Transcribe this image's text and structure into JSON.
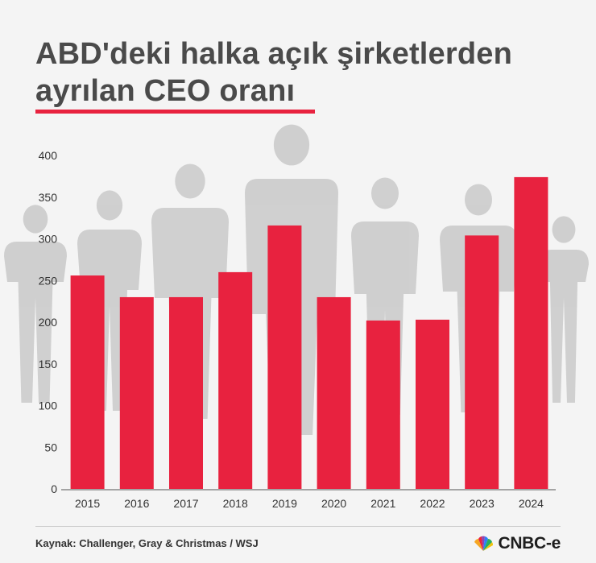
{
  "title": {
    "line1": "ABD'deki halka açık şirketlerden",
    "line2": "ayrılan CEO oranı"
  },
  "source": "Kaynak: Challenger, Gray & Christmas / WSJ",
  "logo": {
    "text": "CNBC-e",
    "icon": "peacock-icon"
  },
  "colors": {
    "bar": "#e8223f",
    "title": "#4a4a4a",
    "silhouette": "#c9c9c9",
    "underline": "#e8223f"
  },
  "chart_data": {
    "type": "bar",
    "categories": [
      "2015",
      "2016",
      "2017",
      "2018",
      "2019",
      "2020",
      "2021",
      "2022",
      "2023",
      "2024"
    ],
    "values": [
      256,
      230,
      230,
      260,
      316,
      230,
      202,
      203,
      304,
      374
    ],
    "ylim": [
      0,
      400
    ],
    "yticks": [
      "0",
      "50",
      "100",
      "150",
      "200",
      "250",
      "300",
      "350",
      "400"
    ],
    "grid": false,
    "background": "business people silhouettes"
  }
}
